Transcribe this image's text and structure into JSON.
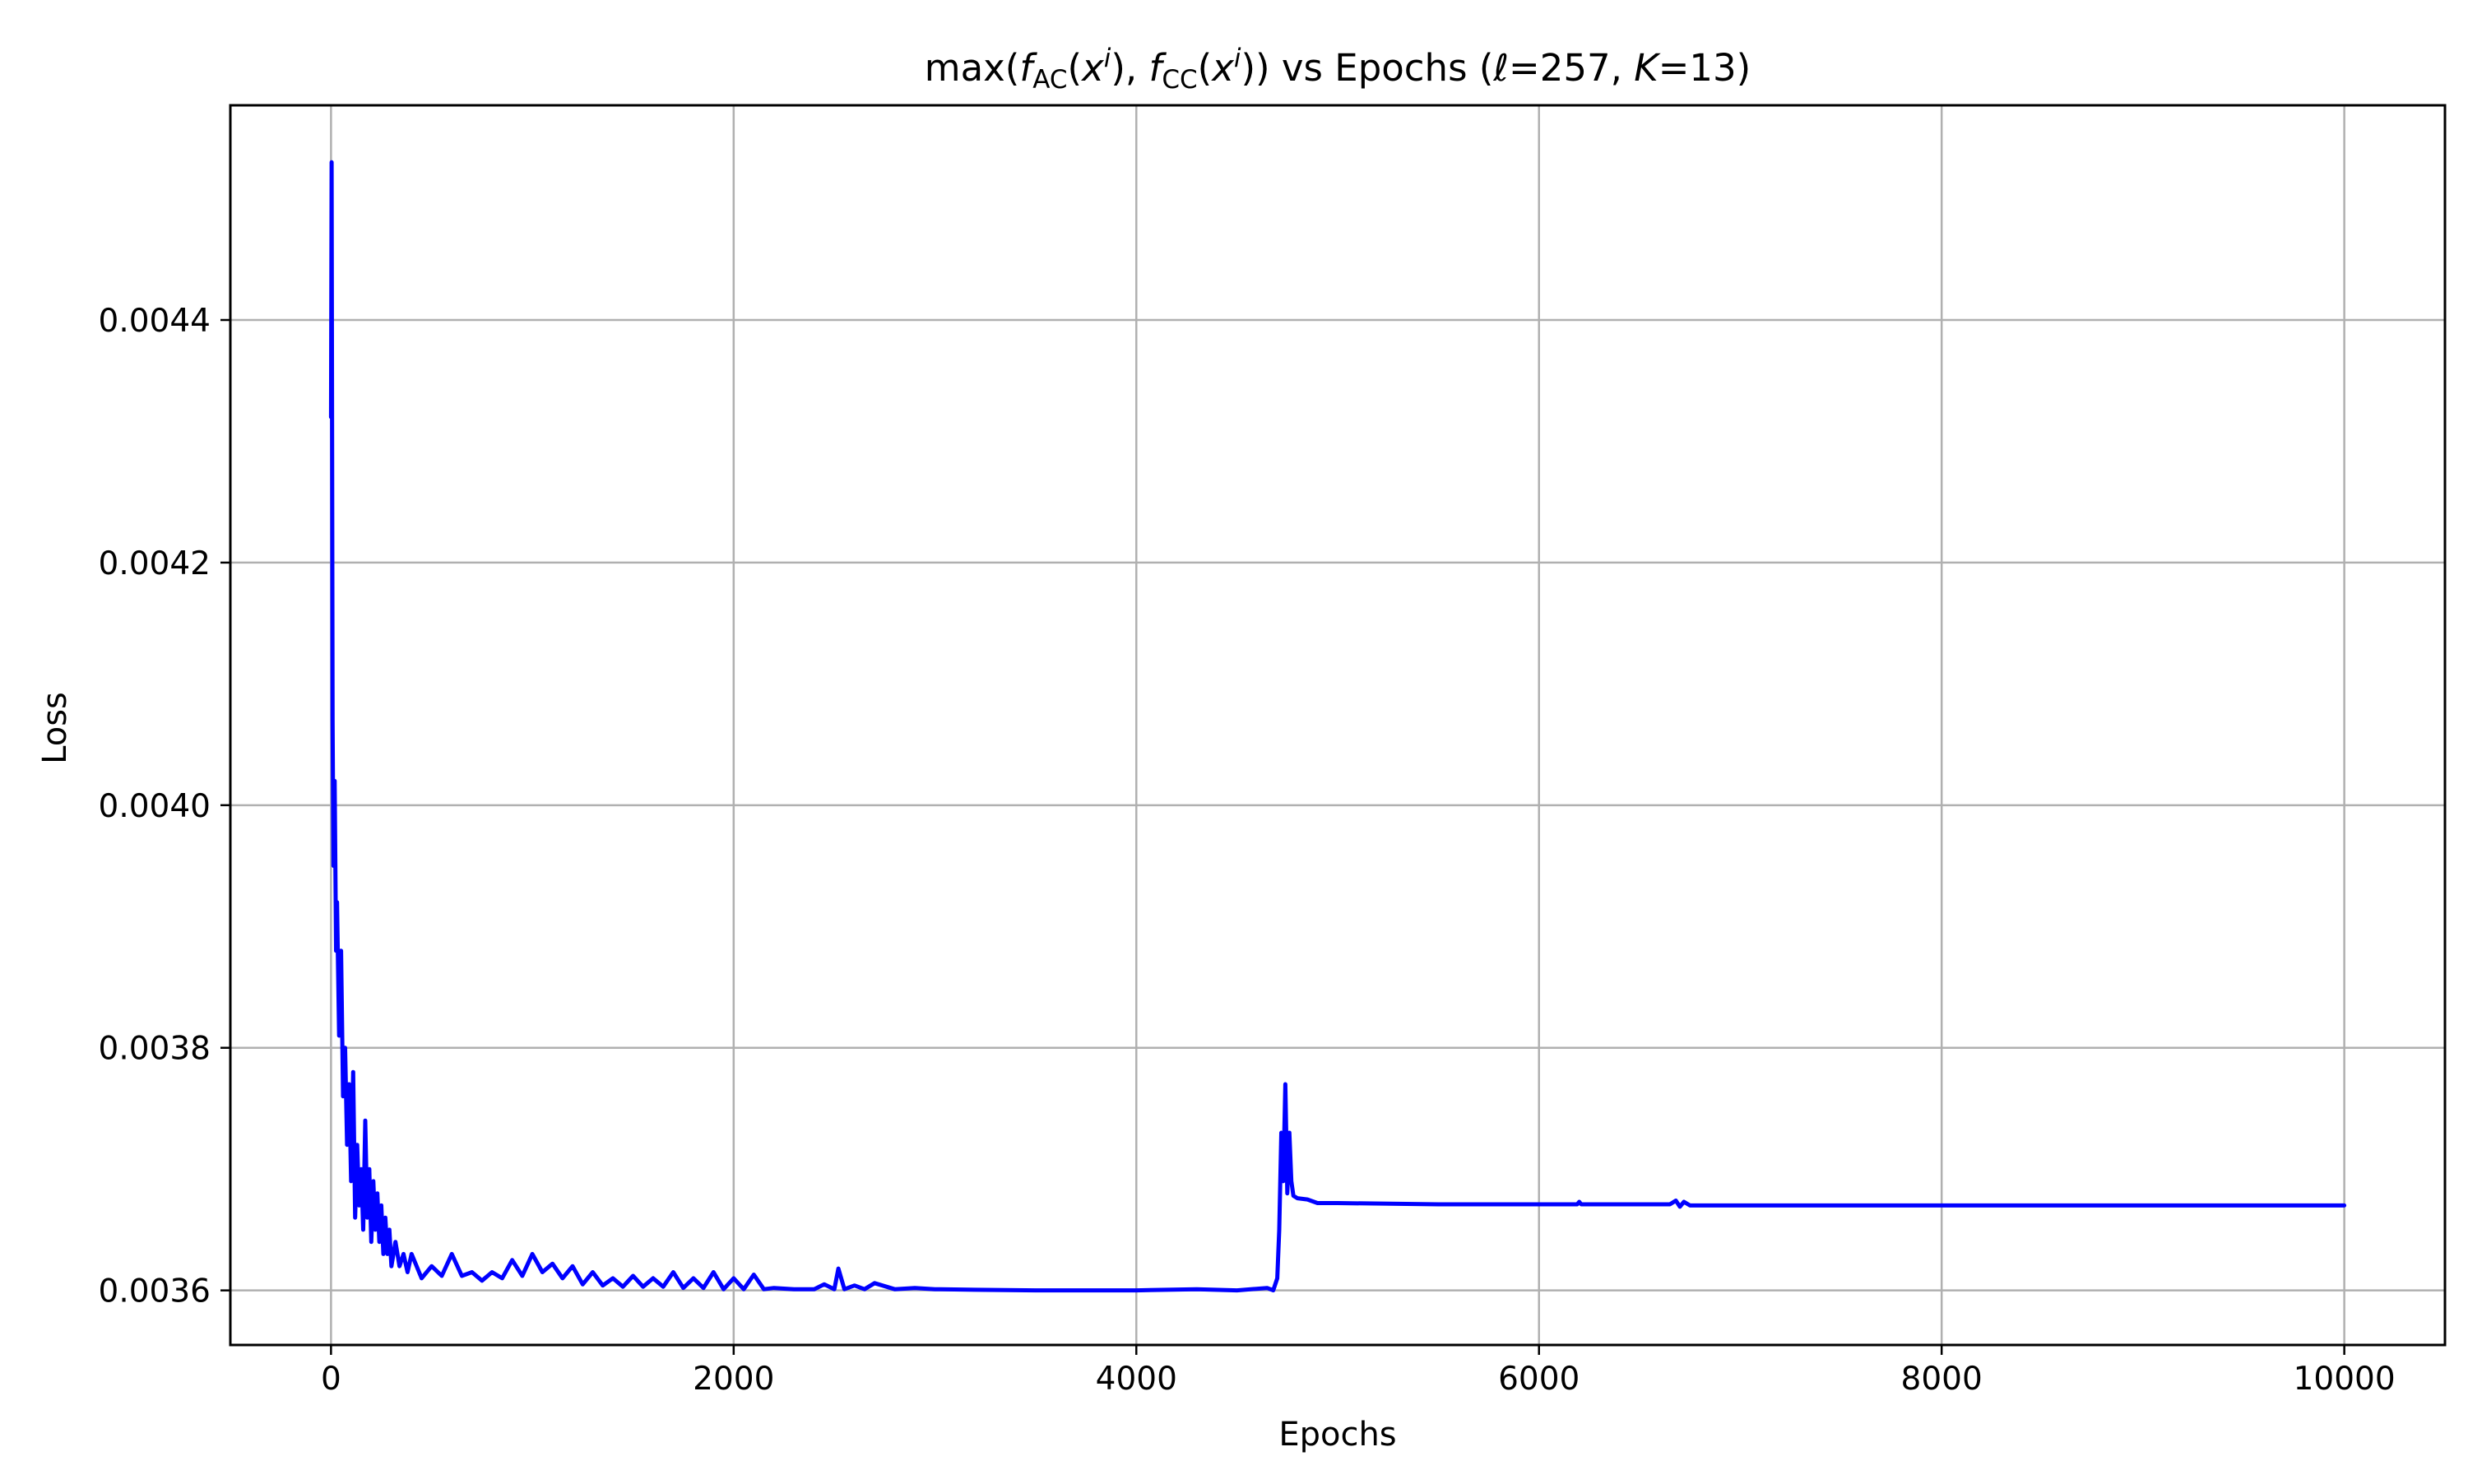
{
  "chart_data": {
    "type": "line",
    "title": {
      "prefix": "max(",
      "f1": "f",
      "f1_sub": "AC",
      "arg1_open": "(",
      "arg1_var": "x",
      "arg1_sup": "i",
      "arg1_close": "), ",
      "f2": "f",
      "f2_sub": "CC",
      "arg2_open": "(",
      "arg2_var": "x",
      "arg2_sup": "i",
      "arg2_close": ")) vs Epochs (",
      "ell": "ℓ",
      "ell_value": "=257, ",
      "k": "K",
      "k_value": "=13)"
    },
    "xlabel": "Epochs",
    "ylabel": "Loss",
    "xlim": [
      -500,
      10500
    ],
    "ylim": [
      0.003555,
      0.004577
    ],
    "x_ticks": [
      {
        "value": 0,
        "label": "0"
      },
      {
        "value": 2000,
        "label": "2000"
      },
      {
        "value": 4000,
        "label": "4000"
      },
      {
        "value": 6000,
        "label": "6000"
      },
      {
        "value": 8000,
        "label": "8000"
      },
      {
        "value": 10000,
        "label": "10000"
      }
    ],
    "y_ticks": [
      {
        "value": 0.0036,
        "label": "0.0036"
      },
      {
        "value": 0.0038,
        "label": "0.0038"
      },
      {
        "value": 0.004,
        "label": "0.0040"
      },
      {
        "value": 0.0042,
        "label": "0.0042"
      },
      {
        "value": 0.0044,
        "label": "0.0044"
      }
    ],
    "grid": true,
    "series": [
      {
        "color": "#0000ff",
        "x": [
          0,
          3,
          8,
          12,
          18,
          25,
          30,
          40,
          50,
          60,
          70,
          80,
          90,
          100,
          110,
          120,
          130,
          140,
          150,
          160,
          170,
          180,
          190,
          200,
          210,
          220,
          230,
          240,
          250,
          260,
          270,
          280,
          290,
          300,
          320,
          340,
          360,
          380,
          400,
          450,
          500,
          550,
          600,
          650,
          700,
          750,
          800,
          850,
          900,
          950,
          1000,
          1050,
          1100,
          1150,
          1200,
          1250,
          1300,
          1350,
          1400,
          1450,
          1500,
          1550,
          1600,
          1650,
          1700,
          1750,
          1800,
          1850,
          1900,
          1950,
          2000,
          2050,
          2100,
          2150,
          2200,
          2300,
          2400,
          2450,
          2500,
          2520,
          2550,
          2600,
          2650,
          2700,
          2800,
          2900,
          3000,
          3200,
          3500,
          4000,
          4300,
          4500,
          4650,
          4680,
          4700,
          4710,
          4720,
          4730,
          4740,
          4750,
          4760,
          4770,
          4780,
          4800,
          4850,
          4900,
          4950,
          5000,
          5500,
          6000,
          6190,
          6200,
          6210,
          6500,
          6650,
          6680,
          6700,
          6720,
          6750,
          7000,
          8000,
          9000,
          10000
        ],
        "y": [
          0.00432,
          0.00453,
          0.00407,
          0.00395,
          0.00402,
          0.00388,
          0.00392,
          0.00381,
          0.00388,
          0.00376,
          0.0038,
          0.00372,
          0.00377,
          0.00369,
          0.00378,
          0.00366,
          0.00372,
          0.00367,
          0.0037,
          0.00365,
          0.00374,
          0.00366,
          0.0037,
          0.00364,
          0.00369,
          0.00365,
          0.00368,
          0.00364,
          0.00367,
          0.00363,
          0.00366,
          0.00363,
          0.00365,
          0.00362,
          0.00364,
          0.00362,
          0.00363,
          0.003615,
          0.00363,
          0.00361,
          0.00362,
          0.003612,
          0.00363,
          0.003612,
          0.003615,
          0.003608,
          0.003615,
          0.00361,
          0.003625,
          0.003612,
          0.00363,
          0.003615,
          0.003622,
          0.00361,
          0.00362,
          0.003605,
          0.003615,
          0.003604,
          0.00361,
          0.003603,
          0.003612,
          0.003603,
          0.00361,
          0.003603,
          0.003615,
          0.003602,
          0.00361,
          0.003602,
          0.003615,
          0.003601,
          0.00361,
          0.003601,
          0.003613,
          0.003601,
          0.003602,
          0.003601,
          0.003601,
          0.003605,
          0.003601,
          0.003618,
          0.003601,
          0.003604,
          0.003601,
          0.003606,
          0.003601,
          0.003602,
          0.003601,
          0.0036005,
          0.0036,
          0.0036,
          0.003601,
          0.0036,
          0.003602,
          0.0036,
          0.00361,
          0.00365,
          0.00373,
          0.00369,
          0.00377,
          0.00368,
          0.00373,
          0.00369,
          0.003678,
          0.003676,
          0.003675,
          0.003672,
          0.003672,
          0.003672,
          0.003671,
          0.003671,
          0.003671,
          0.003673,
          0.003671,
          0.003671,
          0.003671,
          0.003674,
          0.003669,
          0.003673,
          0.00367,
          0.00367,
          0.00367,
          0.00367,
          0.00367
        ]
      }
    ]
  }
}
